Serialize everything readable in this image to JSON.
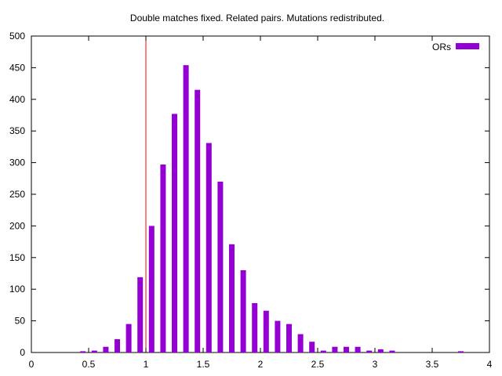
{
  "chart_data": {
    "type": "bar",
    "title": "Double matches fixed. Related pairs. Mutations redistributed.",
    "xlabel": "",
    "ylabel": "",
    "xlim": [
      0,
      4
    ],
    "ylim": [
      0,
      500
    ],
    "xticks": [
      "0",
      "0.5",
      "1",
      "1.5",
      "2",
      "2.5",
      "3",
      "3.5",
      "4"
    ],
    "yticks": [
      "0",
      "50",
      "100",
      "150",
      "200",
      "250",
      "300",
      "350",
      "400",
      "450",
      "500"
    ],
    "grid": false,
    "legend_position": "top-right",
    "series": [
      {
        "name": "ORs",
        "color": "#9400d3",
        "x": [
          0.45,
          0.55,
          0.65,
          0.75,
          0.85,
          0.95,
          1.05,
          1.15,
          1.25,
          1.35,
          1.45,
          1.55,
          1.65,
          1.75,
          1.85,
          1.95,
          2.05,
          2.15,
          2.25,
          2.35,
          2.45,
          2.55,
          2.65,
          2.75,
          2.85,
          2.95,
          3.05,
          3.15,
          3.75
        ],
        "values": [
          2,
          3,
          9,
          21,
          45,
          119,
          200,
          297,
          377,
          454,
          415,
          331,
          270,
          171,
          130,
          78,
          66,
          50,
          45,
          29,
          17,
          3,
          9,
          9,
          9,
          3,
          5,
          3,
          2
        ]
      }
    ],
    "reference_lines": [
      {
        "axis": "x",
        "value": 1,
        "color": "#ff0000"
      }
    ]
  }
}
